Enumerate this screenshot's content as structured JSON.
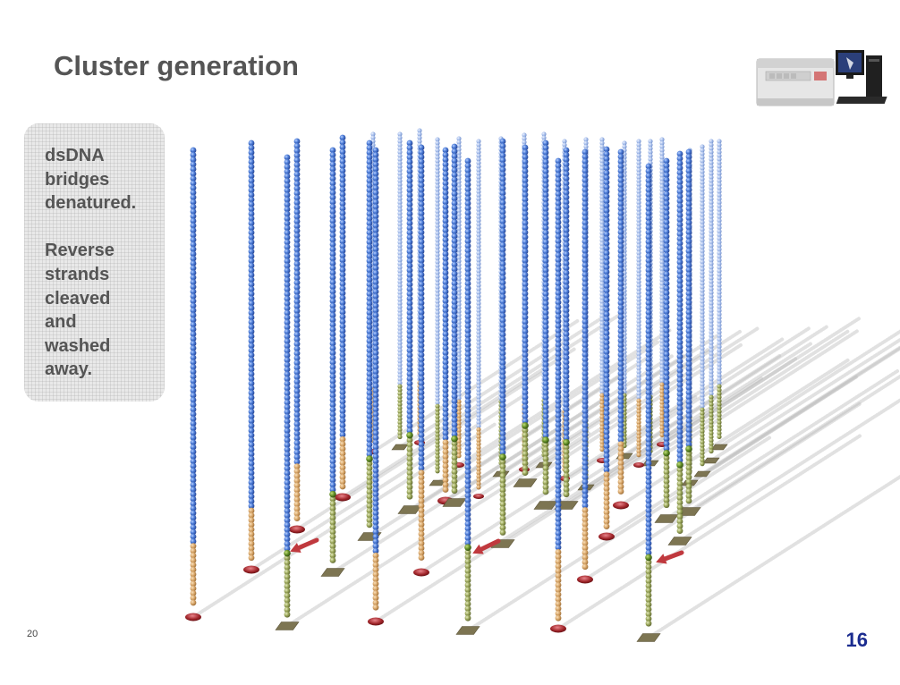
{
  "slide": {
    "title": "Cluster generation",
    "note_lines": [
      "dsDNA",
      "bridges",
      "denatured.",
      "",
      "Reverse",
      "strands",
      "cleaved",
      "and",
      "washed",
      "away."
    ],
    "page_number_left": "20",
    "page_number_right": "16"
  },
  "icons": {
    "instrument": "sequencer-instrument-icon",
    "arrow": "red-arrow-icon"
  },
  "colors": {
    "title": "#555555",
    "note_text": "#555555",
    "page_number": "#1b2c8f",
    "strand_blue": "#3a64c4",
    "strand_light_blue": "#9db6e8",
    "adapter_tan": "#d9a86c",
    "adapter_olive": "#8b9a4a",
    "anchor_red": "#a0252a",
    "arrow": "#c0393e"
  }
}
